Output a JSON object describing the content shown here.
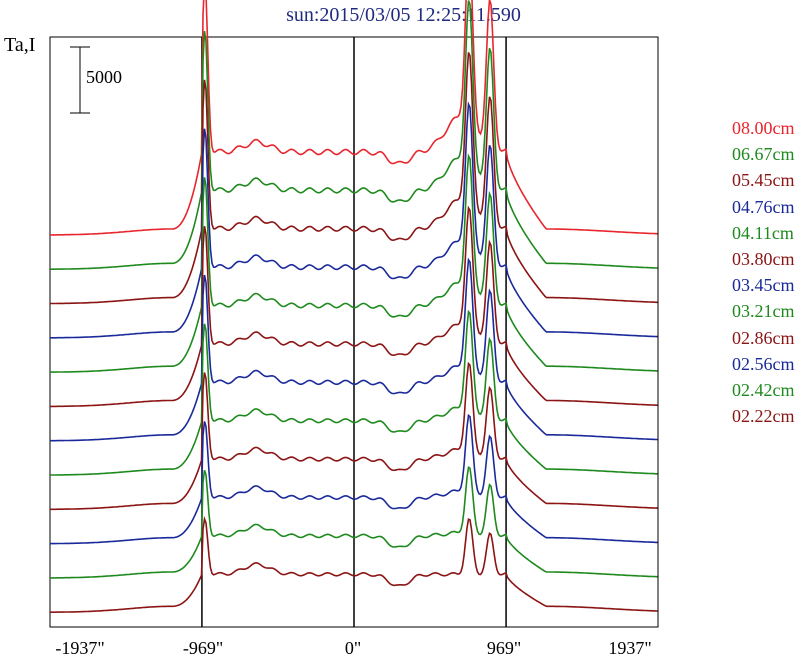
{
  "chart_data": {
    "type": "line",
    "title": "sun:2015/03/05 12:25:11.590",
    "ylabel": "Ta,I",
    "xlabel": "",
    "x_ticks": [
      "-1937\"",
      "-969\"",
      "0\"",
      "969\"",
      "1937\""
    ],
    "xlim": [
      -1937,
      1937
    ],
    "vertical_lines_at": [
      -969,
      0,
      969
    ],
    "scale_bar_label": "5000",
    "series": [
      {
        "name": "08.00cm",
        "color": "#e8262d"
      },
      {
        "name": "06.67cm",
        "color": "#1e8a1e"
      },
      {
        "name": "05.45cm",
        "color": "#8b1414"
      },
      {
        "name": "04.76cm",
        "color": "#1a2a9a"
      },
      {
        "name": "04.11cm",
        "color": "#1e8a1e"
      },
      {
        "name": "03.80cm",
        "color": "#8b1414"
      },
      {
        "name": "03.45cm",
        "color": "#1a2a9a"
      },
      {
        "name": "03.21cm",
        "color": "#1e8a1e"
      },
      {
        "name": "02.86cm",
        "color": "#8b1414"
      },
      {
        "name": "02.56cm",
        "color": "#1a2a9a"
      },
      {
        "name": "02.42cm",
        "color": "#1e8a1e"
      },
      {
        "name": "02.22cm",
        "color": "#8b1414"
      }
    ]
  }
}
